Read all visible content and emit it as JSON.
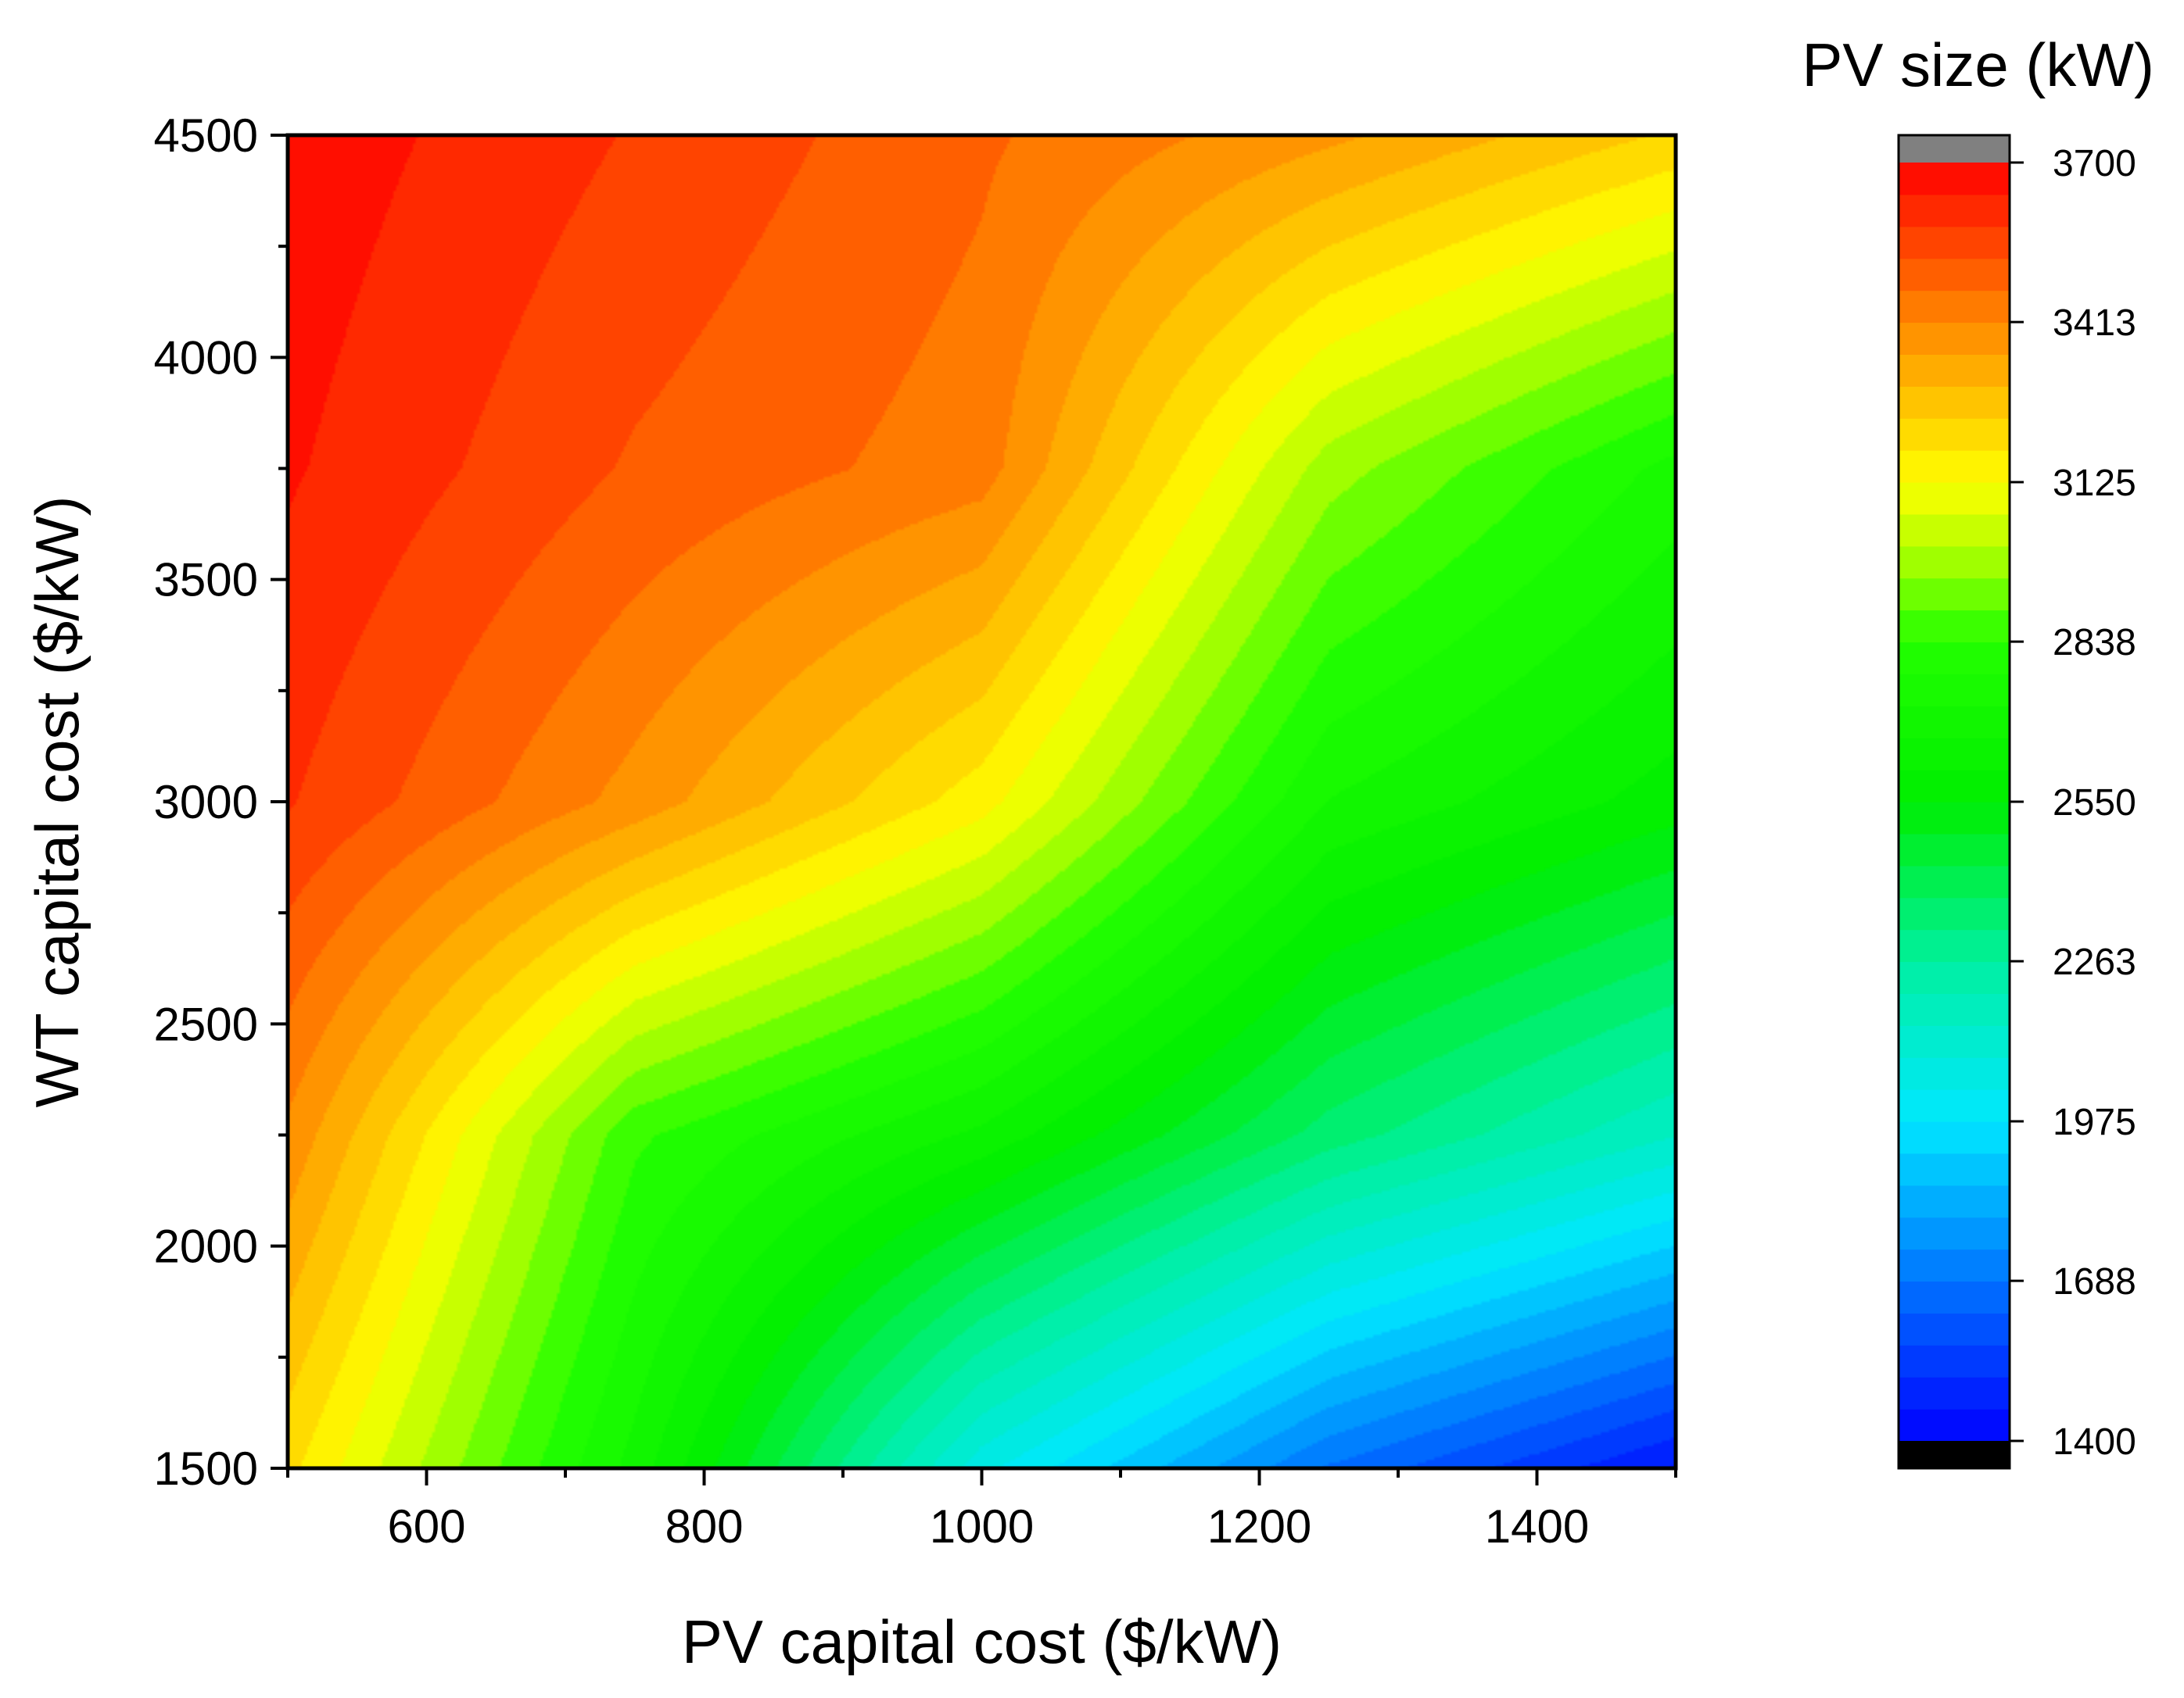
{
  "chart_data": {
    "type": "contour",
    "title": "",
    "xlabel": "PV capital cost ($/kW)",
    "ylabel": "WT capital cost ($/kW)",
    "xlim": [
      500,
      1500
    ],
    "ylim": [
      1500,
      4500
    ],
    "xticks": [
      600,
      800,
      1000,
      1200,
      1400
    ],
    "yticks": [
      1500,
      2000,
      2500,
      3000,
      3500,
      4000,
      4500
    ],
    "x": [
      500,
      750,
      1000,
      1250,
      1500
    ],
    "y": [
      1500,
      2250,
      3000,
      3750,
      4500
    ],
    "z": [
      [
        3200,
        2700,
        2050,
        1680,
        1450
      ],
      [
        3400,
        2850,
        2650,
        2350,
        2150
      ],
      [
        3590,
        3390,
        3150,
        2720,
        2580
      ],
      [
        3650,
        3520,
        3440,
        2980,
        2760
      ],
      [
        3680,
        3580,
        3480,
        3370,
        3230
      ]
    ],
    "colorbar": {
      "title": "PV size (kW)",
      "min": 1400,
      "max": 3700,
      "levels": 40,
      "tick_labels": [
        "3700",
        "3413",
        "3125",
        "2838",
        "2550",
        "2263",
        "1975",
        "1688",
        "1400"
      ],
      "tick_values": [
        3700,
        3413,
        3125,
        2838,
        2550,
        2263,
        1975,
        1688,
        1400
      ],
      "over_color": "#808080",
      "under_color": "#000000",
      "colormap_stops": [
        {
          "value": 1400,
          "color": "#0000ff"
        },
        {
          "value": 1975,
          "color": "#00e8ff"
        },
        {
          "value": 2263,
          "color": "#00f0a0"
        },
        {
          "value": 2550,
          "color": "#00ee00"
        },
        {
          "value": 2838,
          "color": "#22ff00"
        },
        {
          "value": 3000,
          "color": "#b0ff00"
        },
        {
          "value": 3125,
          "color": "#ffff00"
        },
        {
          "value": 3413,
          "color": "#ff8800"
        },
        {
          "value": 3700,
          "color": "#ff0000"
        }
      ]
    },
    "grid": false
  }
}
